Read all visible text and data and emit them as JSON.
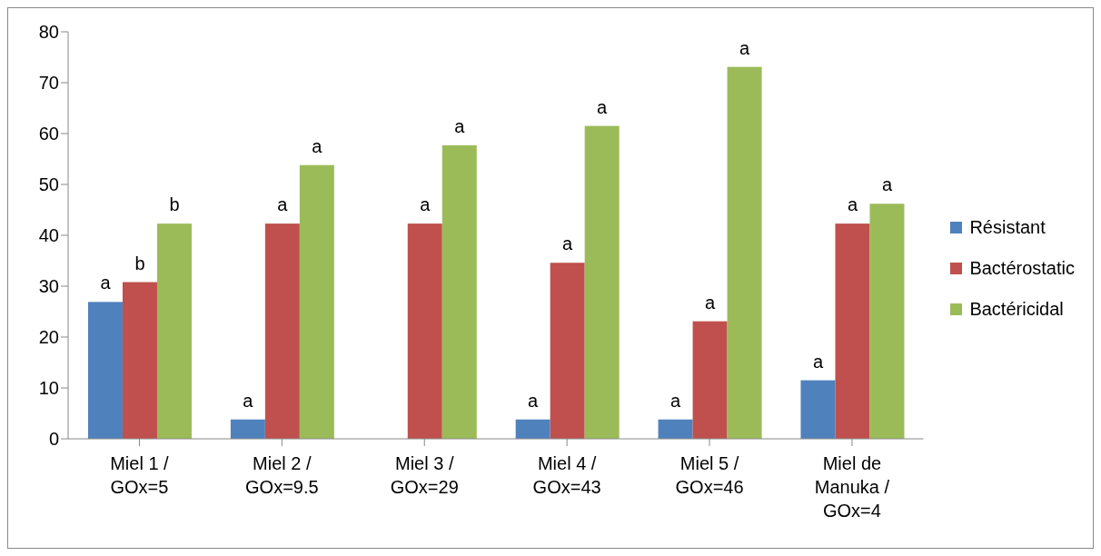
{
  "chart_data": {
    "type": "bar",
    "categories": [
      "Miel 1 / GOx=5",
      "Miel 2 / GOx=9.5",
      "Miel 3 / GOx=29",
      "Miel 4 / GOx=43",
      "Miel 5 / GOx=46",
      "Miel de Manuka / GOx=4"
    ],
    "series": [
      {
        "name": "Résistant",
        "color": "#4f81bd",
        "values": [
          26.9,
          3.8,
          0,
          3.8,
          3.8,
          11.5
        ],
        "value_labels": [
          "a",
          "a",
          null,
          "a",
          "a",
          "a"
        ]
      },
      {
        "name": "Bactérostatic",
        "color": "#c0504d",
        "values": [
          30.8,
          42.3,
          42.3,
          34.6,
          23.1,
          42.3
        ],
        "value_labels": [
          "b",
          "a",
          "a",
          "a",
          "a",
          "a"
        ]
      },
      {
        "name": "Bactéricidal",
        "color": "#9bbb59",
        "values": [
          42.3,
          53.8,
          57.7,
          61.5,
          73.1,
          46.2
        ],
        "value_labels": [
          "b",
          "a",
          "a",
          "a",
          "a",
          "a"
        ]
      }
    ],
    "ylim": [
      0,
      80
    ],
    "yticks": [
      0,
      10,
      20,
      30,
      40,
      50,
      60,
      70,
      80
    ],
    "legend": "right"
  }
}
